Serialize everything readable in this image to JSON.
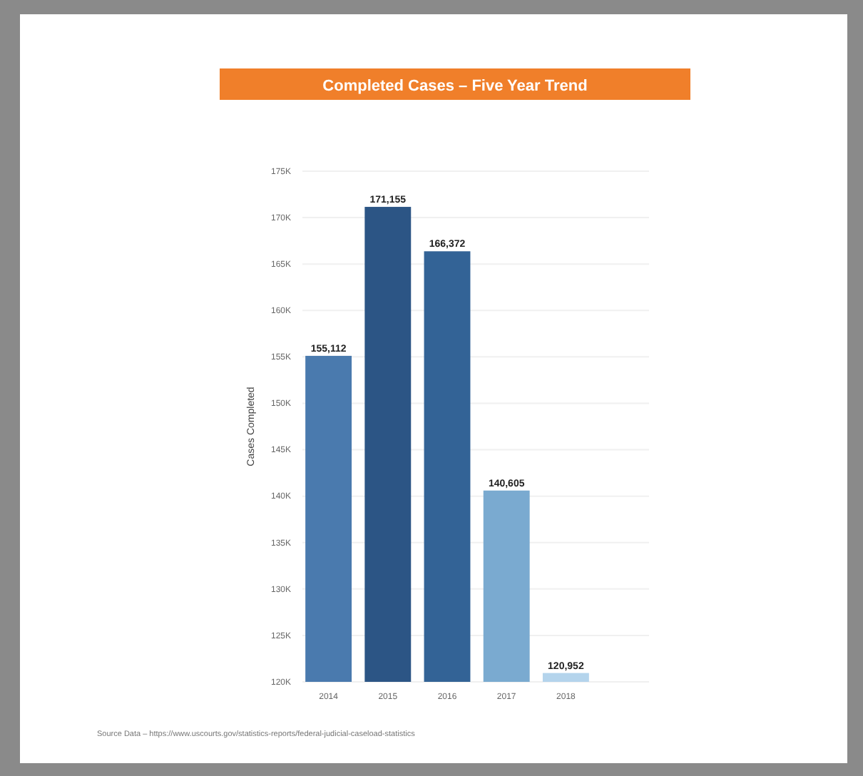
{
  "chart_data": {
    "type": "bar",
    "title": "Completed Cases – Five Year Trend",
    "ylabel": "Cases Completed",
    "categories": [
      "2014",
      "2015",
      "2016",
      "2017",
      "2018"
    ],
    "values": [
      155112,
      171155,
      166372,
      140605,
      120952
    ],
    "value_labels": [
      "155,112",
      "171,155",
      "166,372",
      "140,605",
      "120,952"
    ],
    "colors": [
      "#4a7aae",
      "#2c5585",
      "#336396",
      "#7aaad0",
      "#b4d4ec"
    ],
    "ylim": [
      120000,
      175000
    ],
    "yticks": [
      {
        "value": 120000,
        "label": "120K"
      },
      {
        "value": 125000,
        "label": "125K"
      },
      {
        "value": 130000,
        "label": "130K"
      },
      {
        "value": 135000,
        "label": "135K"
      },
      {
        "value": 140000,
        "label": "140K"
      },
      {
        "value": 145000,
        "label": "145K"
      },
      {
        "value": 150000,
        "label": "150K"
      },
      {
        "value": 155000,
        "label": "155K"
      },
      {
        "value": 160000,
        "label": "160K"
      },
      {
        "value": 165000,
        "label": "165K"
      },
      {
        "value": 170000,
        "label": "170K"
      },
      {
        "value": 175000,
        "label": "175K"
      }
    ],
    "grid": "y",
    "annotations": [
      "Source Data – https://www.uscourts.gov/statistics-reports/federal-judicial-caseload-statistics"
    ]
  }
}
